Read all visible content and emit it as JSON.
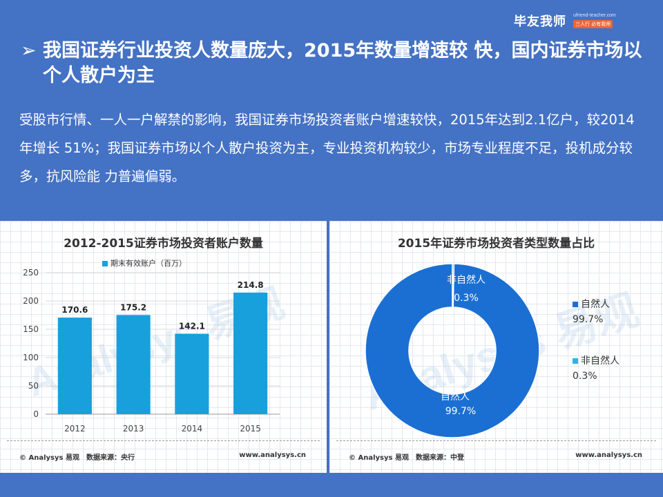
{
  "logo": {
    "main": "毕友我师",
    "url": "ufriend-teacher.com",
    "tag": "三人行 必有我师"
  },
  "title": {
    "bullet": "➢",
    "text": "我国证券行业投资人数量庞大，2015年数量增速较 快，国内证券市场以个人散户为主"
  },
  "body_text": "受股市行情、一人一户解禁的影响，我国证券市场投资者账户增速较快，2015年达到2.1亿户，较2014年增长 51%；我国证券市场以个人散户投资为主，专业投资机构较少，市场专业程度不足，投机成分较多，抗风险能 力普遍偏弱。",
  "colors": {
    "background": "#4472c4",
    "bar": "#18a0dc",
    "donut_main": "#1b6fd3",
    "donut_minor": "#2fb4e8"
  },
  "left_chart": {
    "footer_left": "© Analysys 易观　数据来源：央行",
    "footer_right": "www.analysys.cn",
    "watermark": "Analysys 易观"
  },
  "right_chart": {
    "footer_left": "© Analysys 易观　数据来源：中登",
    "footer_right": "www.analysys.cn",
    "watermark": "Analysys 易观",
    "slice_label_main": "自然人",
    "slice_value_main": "99.7%",
    "slice_label_minor": "非自然人",
    "slice_value_minor": "0.3%",
    "legend": [
      {
        "label": "自然人",
        "value": "99.7%"
      },
      {
        "label": "非自然人",
        "value": "0.3%"
      }
    ]
  },
  "chart_data": [
    {
      "type": "bar",
      "title": "2012-2015证券市场投资者账户数量",
      "categories": [
        "2012",
        "2013",
        "2014",
        "2015"
      ],
      "series": [
        {
          "name": "期末有效账户（百万）",
          "values": [
            170.6,
            175.2,
            142.1,
            214.8
          ]
        }
      ],
      "ylim": [
        0,
        250
      ],
      "yticks": [
        0,
        50,
        100,
        150,
        200,
        250
      ],
      "data_labels": [
        "170.6",
        "175.2",
        "142.1",
        "214.8"
      ],
      "legend_position": "top-center"
    },
    {
      "type": "pie",
      "title": "2015年证券市场投资者类型数量占比",
      "categories": [
        "自然人",
        "非自然人"
      ],
      "values": [
        99.7,
        0.3
      ],
      "legend_position": "right"
    }
  ]
}
